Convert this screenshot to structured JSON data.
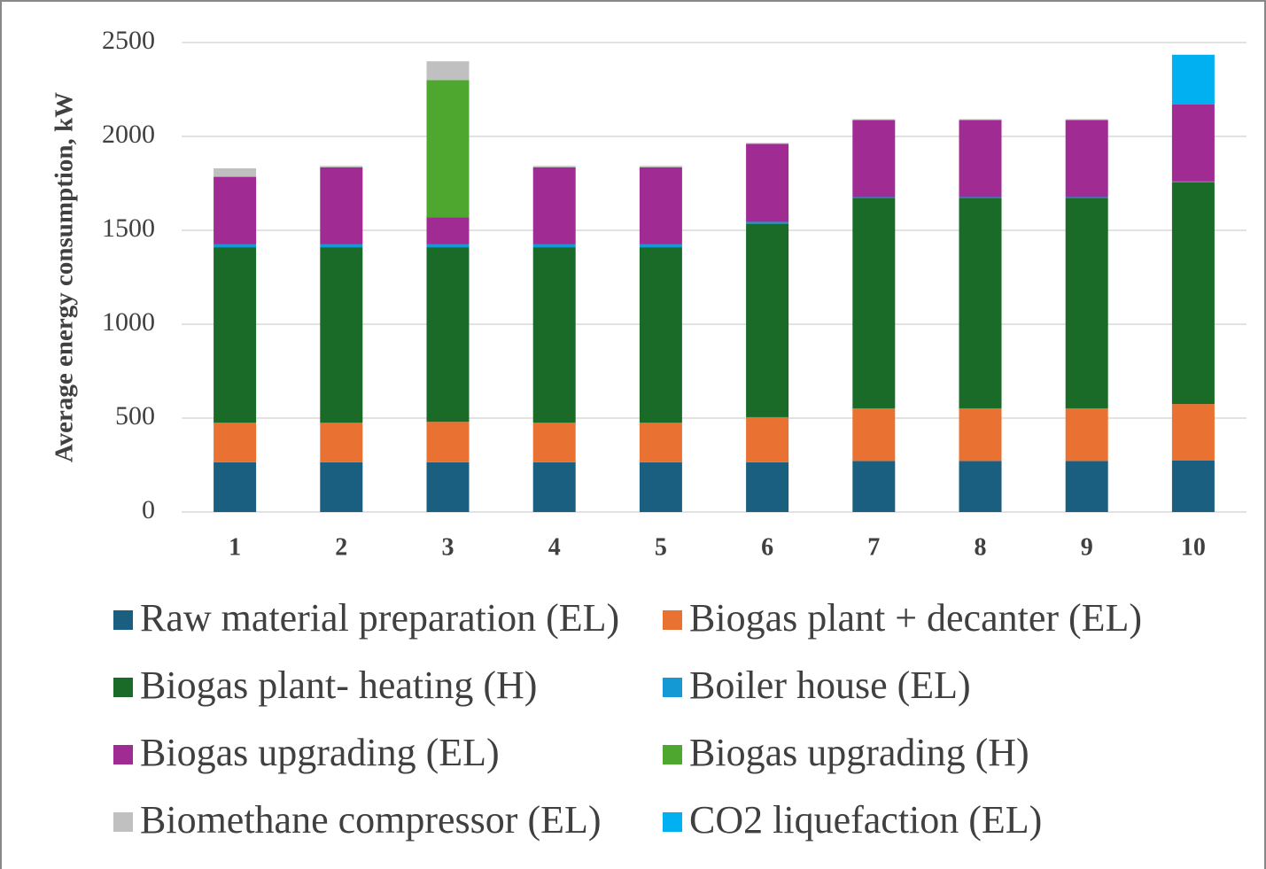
{
  "chart_data": {
    "type": "stacked_bar",
    "y_label": "Average energy consumption, kW",
    "categories": [
      "1",
      "2",
      "3",
      "4",
      "5",
      "6",
      "7",
      "8",
      "9",
      "10"
    ],
    "series": [
      {
        "name": "Raw material preparation (EL)",
        "color": "#1a5e80",
        "values": [
          265,
          265,
          265,
          265,
          265,
          265,
          272,
          272,
          272,
          275
        ]
      },
      {
        "name": "Biogas plant + decanter (EL)",
        "color": "#e97132",
        "values": [
          210,
          210,
          215,
          210,
          210,
          240,
          280,
          280,
          280,
          300
        ]
      },
      {
        "name": "Biogas plant- heating (H)",
        "color": "#1a6b27",
        "values": [
          935,
          935,
          930,
          935,
          935,
          1030,
          1120,
          1120,
          1120,
          1180
        ]
      },
      {
        "name": "Boiler house (EL)",
        "color": "#1599d4",
        "values": [
          15,
          15,
          15,
          15,
          15,
          10,
          5,
          5,
          5,
          5
        ]
      },
      {
        "name": "Biogas upgrading (EL)",
        "color": "#a02b93",
        "values": [
          360,
          410,
          145,
          410,
          410,
          415,
          410,
          410,
          410,
          410
        ]
      },
      {
        "name": "Biogas upgrading (H)",
        "color": "#4ea72e",
        "values": [
          0,
          0,
          730,
          0,
          0,
          0,
          0,
          0,
          0,
          0
        ]
      },
      {
        "name": "Biomethane compressor (EL)",
        "color": "#c0c0c0",
        "values": [
          45,
          8,
          100,
          8,
          8,
          5,
          5,
          5,
          5,
          0
        ]
      },
      {
        "name": "CO2 liquefaction (EL)",
        "color": "#00b0f0",
        "values": [
          0,
          0,
          0,
          0,
          0,
          0,
          0,
          0,
          0,
          265
        ]
      }
    ],
    "ylim": [
      0,
      2500
    ],
    "yticks": [
      0,
      500,
      1000,
      1500,
      2000,
      2500
    ],
    "grid": true,
    "legend": "bottom"
  }
}
